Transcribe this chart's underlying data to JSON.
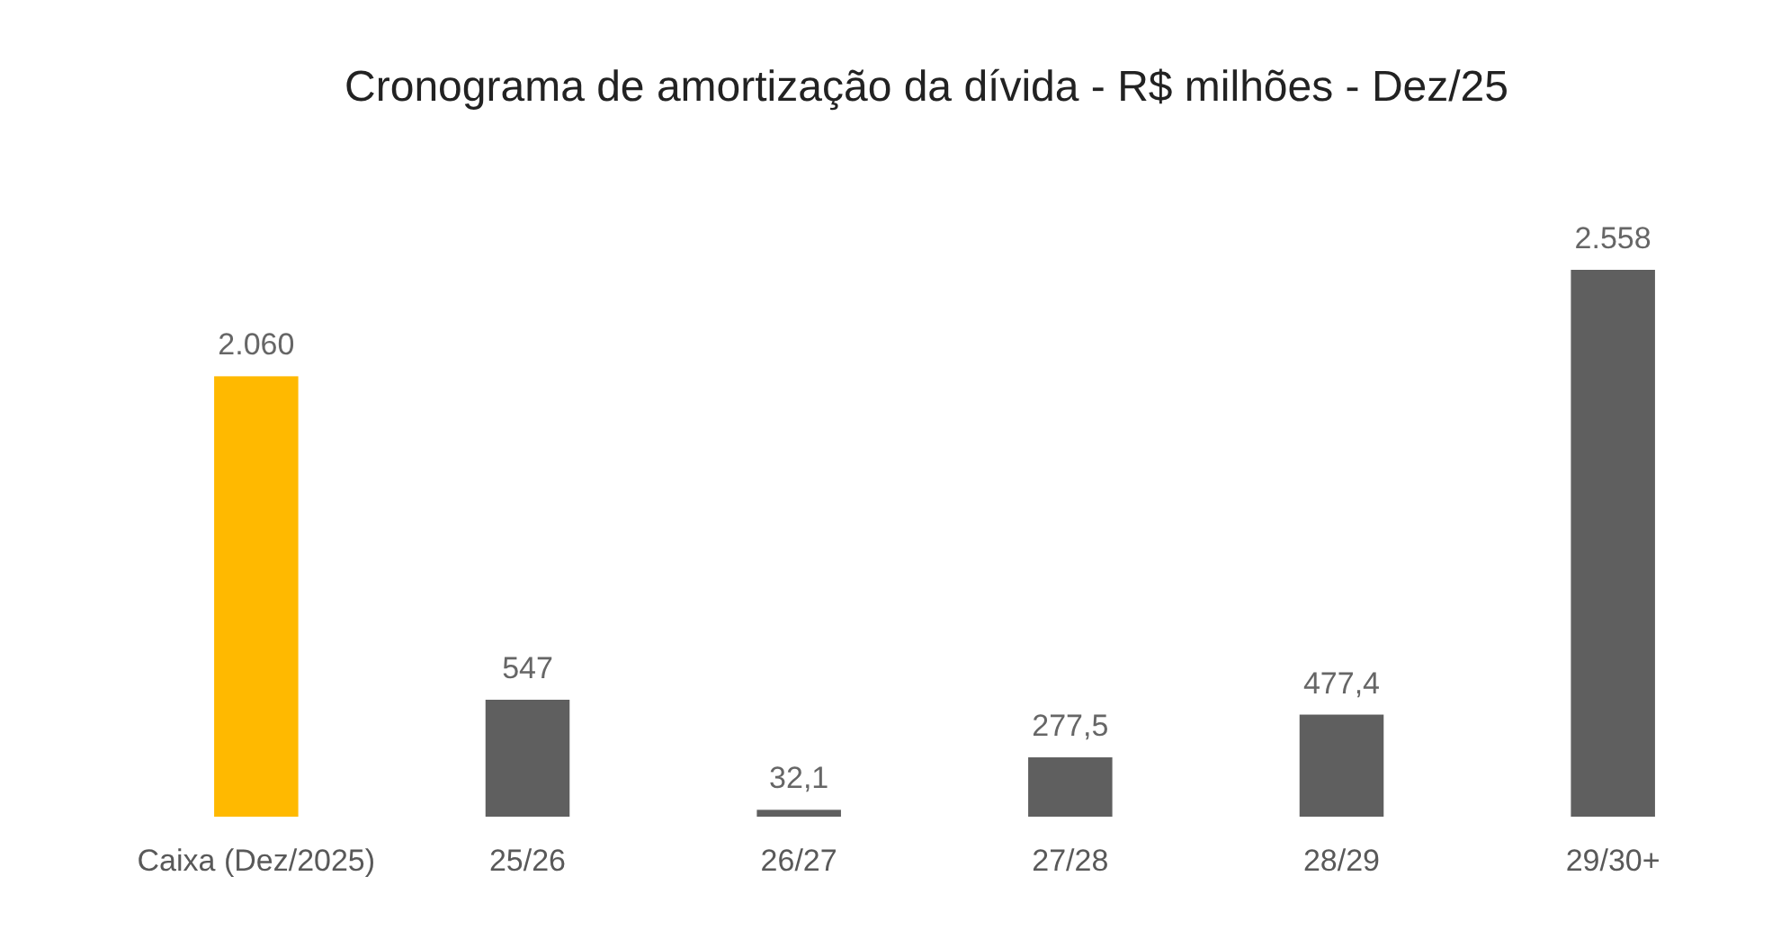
{
  "chart_data": {
    "type": "bar",
    "title": "Cronograma de amortização da dívida - R$ milhões - Dez/25",
    "categories": [
      "Caixa (Dez/2025)",
      "25/26",
      "26/27",
      "27/28",
      "28/29",
      "29/30+"
    ],
    "values": [
      2060,
      547,
      32.1,
      277.5,
      477.4,
      2558
    ],
    "value_labels": [
      "2.060",
      "547",
      "32,1",
      "277,5",
      "477,4",
      "2.558"
    ],
    "colors": [
      "#ffb900",
      "#5f5f5f",
      "#5f5f5f",
      "#5f5f5f",
      "#5f5f5f",
      "#5f5f5f"
    ]
  }
}
